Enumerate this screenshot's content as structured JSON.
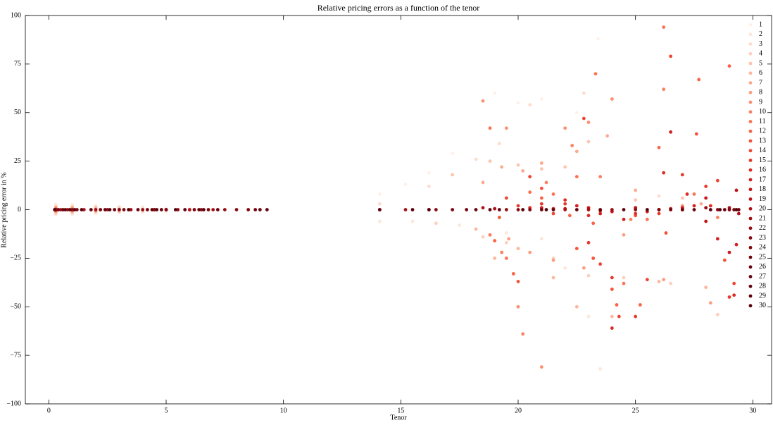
{
  "chart_data": {
    "type": "scatter",
    "title": "Relative pricing errors as a function of the tenor",
    "x_label": "Tenor",
    "y_label": "Relative pricing error in %",
    "xlim": [
      -1,
      30.8
    ],
    "ylim": [
      -100,
      100
    ],
    "xticks": [
      0,
      5,
      10,
      15,
      20,
      25,
      30
    ],
    "yticks": [
      {
        "value": -100,
        "label": "−100"
      },
      {
        "value": -75,
        "label": "−75"
      },
      {
        "value": -50,
        "label": "−50"
      },
      {
        "value": -25,
        "label": "−25"
      },
      0,
      25,
      50,
      75,
      100
    ],
    "legend": "right",
    "series": [
      {
        "name": "1",
        "color": "#fff0e9",
        "x": [
          0.3,
          1,
          2,
          3,
          4,
          5,
          6,
          14.1,
          15.2,
          16.2,
          17.2,
          18.5,
          19,
          20,
          21,
          22.5,
          23.4
        ],
        "values": [
          3,
          2.7,
          2.2,
          1.8,
          1.4,
          1,
          0.6,
          8,
          13,
          19,
          29,
          56,
          60,
          55,
          57,
          50,
          88
        ]
      },
      {
        "name": "2",
        "color": "#fee6da",
        "x": [
          0.3,
          1,
          2,
          3,
          4,
          5,
          6,
          14.1,
          15.5,
          17.5,
          19.5,
          21,
          22,
          23,
          23.5
        ],
        "values": [
          -2.5,
          -2.2,
          -1.8,
          -1.5,
          -1.1,
          -0.8,
          -0.5,
          -6,
          -6,
          -8,
          -12,
          -15,
          -30,
          -55,
          -82
        ]
      },
      {
        "name": "3",
        "color": "#fedccd",
        "x": [
          0.3,
          1,
          2,
          3,
          4,
          14.1,
          16.2,
          18.2,
          19.2,
          20.5,
          22.8,
          24,
          26
        ],
        "values": [
          2,
          1.8,
          1.5,
          1.2,
          0.9,
          3,
          12,
          26,
          34,
          54,
          60,
          57,
          7
        ]
      },
      {
        "name": "4",
        "color": "#fdd0bc",
        "x": [
          0.3,
          1,
          2,
          3,
          4,
          16.5,
          18.5,
          19.5,
          21.5,
          23,
          24.5,
          26.5,
          28.5
        ],
        "values": [
          -1.8,
          -1.6,
          -1.2,
          -1,
          -0.7,
          -7,
          -14,
          -17,
          -25,
          -34,
          -35,
          -38,
          -54
        ]
      },
      {
        "name": "5",
        "color": "#fdc5ae",
        "x": [
          0.3,
          1,
          2,
          3,
          17.2,
          18.8,
          20,
          21,
          22,
          23,
          25,
          27
        ],
        "values": [
          1.5,
          1.3,
          1,
          0.8,
          18,
          25,
          23,
          21,
          22,
          35,
          5,
          6
        ]
      },
      {
        "name": "6",
        "color": "#fcb89e",
        "x": [
          0.3,
          1,
          2,
          3,
          18.2,
          19,
          20,
          21.5,
          22.5,
          24,
          26,
          28
        ],
        "values": [
          -1.2,
          -1,
          -0.8,
          -0.6,
          -10,
          -25,
          -20,
          -35,
          -50,
          -55,
          -37,
          -40
        ]
      },
      {
        "name": "7",
        "color": "#fcab8f",
        "x": [
          0.3,
          1,
          2,
          18.5,
          19.3,
          20.2,
          21,
          22.5,
          23.8,
          25,
          27.8
        ],
        "values": [
          1,
          0.8,
          0.6,
          14,
          22,
          20,
          24,
          30,
          38,
          10,
          3
        ]
      },
      {
        "name": "8",
        "color": "#fc9e80",
        "x": [
          0.3,
          1,
          2,
          18.8,
          19.6,
          20.5,
          21.5,
          22.8,
          24.5,
          26.2,
          28.2
        ],
        "values": [
          -0.8,
          -0.6,
          -0.5,
          -13,
          -15,
          -22,
          -26,
          -30,
          -13,
          -36,
          -48
        ]
      },
      {
        "name": "9",
        "color": "#fc9070",
        "x": [
          0.3,
          1,
          18.5,
          19.5,
          20,
          21,
          22,
          23,
          24,
          25,
          27
        ],
        "values": [
          0.6,
          0.5,
          56,
          42,
          -50,
          -81,
          42,
          45,
          57,
          -3,
          2
        ]
      },
      {
        "name": "10",
        "color": "#fb8161",
        "x": [
          0.3,
          1,
          18.8,
          19.3,
          20.2,
          21.2,
          22.3,
          23.5,
          24.8,
          26.2,
          28.5
        ],
        "values": [
          -0.5,
          -0.4,
          -13,
          -22,
          -64,
          14,
          33,
          17,
          -5,
          62,
          -4
        ]
      },
      {
        "name": "11",
        "color": "#fb7353",
        "x": [
          0.3,
          18.8,
          19.5,
          20.5,
          21.5,
          22.5,
          23.3,
          24.5,
          25.5,
          26.2,
          27.5
        ],
        "values": [
          0.4,
          42,
          -25,
          9,
          8,
          17,
          70,
          -38,
          -5,
          94,
          8
        ]
      },
      {
        "name": "12",
        "color": "#f96346",
        "x": [
          0.3,
          19,
          19.8,
          21,
          22.2,
          23.2,
          24.2,
          25.2,
          26,
          27.7,
          29
        ],
        "values": [
          -0.3,
          -16,
          -33,
          6,
          -3,
          -7,
          -49,
          -49,
          32,
          67,
          74
        ]
      },
      {
        "name": "13",
        "color": "#f5523a",
        "x": [
          0.3,
          19.2,
          20,
          21,
          22.5,
          23.2,
          24,
          25,
          26.3,
          27.6,
          28.8
        ],
        "values": [
          0.2,
          -4,
          -37,
          11,
          -20,
          -25,
          -41,
          -3,
          -12,
          39,
          -26
        ]
      },
      {
        "name": "14",
        "color": "#ef4533",
        "x": [
          0.3,
          19.5,
          20.5,
          21.5,
          22.8,
          23.5,
          24.3,
          25.5,
          26.5,
          28.5,
          29.2
        ],
        "values": [
          -0.2,
          6,
          17,
          -2,
          47,
          -28,
          -55,
          -36,
          79,
          15,
          -38
        ]
      },
      {
        "name": "15",
        "color": "#e7392b",
        "x": [
          0.3,
          20,
          21,
          22,
          23,
          24,
          25,
          26,
          27,
          28,
          29
        ],
        "values": [
          0.1,
          2,
          3,
          3,
          -17,
          -35,
          -55,
          -2,
          18,
          12,
          -45
        ]
      },
      {
        "name": "16",
        "color": "#dc2c25",
        "x": [
          0.3,
          20.5,
          22,
          23,
          24,
          25,
          26.2,
          27.2,
          28.2,
          29.2
        ],
        "values": [
          0,
          1,
          5,
          -3,
          -61,
          -2,
          19,
          8,
          2,
          -44
        ]
      },
      {
        "name": "17",
        "color": "#d32020",
        "x": [
          0.3,
          21,
          22.5,
          23.5,
          24.5,
          25.5,
          26.5,
          27.5,
          28.5,
          29.3
        ],
        "values": [
          0,
          1,
          2,
          -2,
          -5,
          -1,
          40,
          2,
          -15,
          -18
        ]
      },
      {
        "name": "18",
        "color": "#c8171c",
        "x": [
          0.3,
          21.5,
          23,
          24,
          25,
          26,
          27,
          28,
          29
        ],
        "values": [
          0,
          0.5,
          1,
          -1,
          1,
          0,
          1,
          6,
          -22
        ]
      },
      {
        "name": "19",
        "color": "#bd151a",
        "x": [
          0.3,
          22,
          23.5,
          25,
          26.5,
          28,
          29.3
        ],
        "values": [
          0,
          0.5,
          -0.5,
          1,
          0.5,
          -6,
          10
        ]
      },
      {
        "name": "20",
        "color": "#b11218",
        "x": [
          0.3,
          1.5,
          3,
          4.5,
          6,
          14.1,
          18.5,
          22,
          26,
          29.4
        ],
        "values": [
          0,
          0,
          0,
          0,
          0,
          0,
          1,
          0,
          0,
          -2
        ]
      },
      {
        "name": "21",
        "color": "#a50f15",
        "x": [
          0.5,
          2,
          3.5,
          5,
          7,
          15.2,
          19,
          23,
          27,
          29
        ],
        "values": [
          0,
          0,
          0,
          0,
          0,
          0,
          0.5,
          0,
          0,
          1
        ]
      },
      {
        "name": "22",
        "color": "#980c13",
        "x": [
          0.8,
          2.5,
          4,
          5.5,
          7.5,
          16.2,
          19.5,
          24,
          28
        ],
        "values": [
          0,
          0,
          0,
          0,
          0,
          0,
          0,
          0,
          1
        ]
      },
      {
        "name": "23",
        "color": "#8b0a12",
        "x": [
          1,
          3,
          4.5,
          6.5,
          8,
          16.5,
          20,
          25,
          28.5
        ],
        "values": [
          0,
          0,
          0,
          0,
          0,
          0,
          0,
          0,
          0
        ]
      },
      {
        "name": "24",
        "color": "#7e0710",
        "x": [
          1.2,
          3.2,
          5,
          6.8,
          8.5,
          17.2,
          20.5,
          26,
          29
        ],
        "values": [
          0,
          0,
          0,
          0,
          0,
          0,
          0,
          0,
          0
        ]
      },
      {
        "name": "25",
        "color": "#73040e",
        "x": [
          0.4,
          2.2,
          4.2,
          6.2,
          8.8,
          17.8,
          21,
          26.5,
          29.2
        ],
        "values": [
          0,
          0,
          0,
          0,
          0,
          0,
          0,
          0,
          0
        ]
      },
      {
        "name": "26",
        "color": "#6b020d",
        "x": [
          0.6,
          2.8,
          4.8,
          7.2,
          9,
          18.2,
          21.5,
          27,
          28.8
        ],
        "values": [
          0,
          0,
          0,
          0,
          0,
          0,
          0,
          0,
          0
        ]
      },
      {
        "name": "27",
        "color": "#67000d",
        "x": [
          0.7,
          1.8,
          3.8,
          5.8,
          9.3,
          18.8,
          22.5,
          27.5,
          29.4
        ],
        "values": [
          0,
          0,
          0,
          0,
          0,
          0,
          0,
          0,
          0
        ]
      },
      {
        "name": "28",
        "color": "#63000c",
        "x": [
          0.9,
          2.4,
          4.4,
          6.4,
          14.1,
          19.2,
          23.5,
          28.2
        ],
        "values": [
          0,
          0,
          0,
          0,
          0,
          0,
          0,
          0
        ]
      },
      {
        "name": "29",
        "color": "#5e000b",
        "x": [
          1.1,
          2.6,
          4.6,
          6.6,
          15.5,
          20.2,
          24.5,
          28.6
        ],
        "values": [
          0,
          0,
          0,
          0,
          0,
          0,
          0,
          0
        ]
      },
      {
        "name": "30",
        "color": "#58000a",
        "x": [
          0.25,
          1.4,
          3.4,
          5.4,
          16.2,
          21.2,
          25.5,
          29.3
        ],
        "values": [
          0,
          0,
          0,
          0,
          0,
          0,
          0,
          0
        ]
      }
    ]
  }
}
